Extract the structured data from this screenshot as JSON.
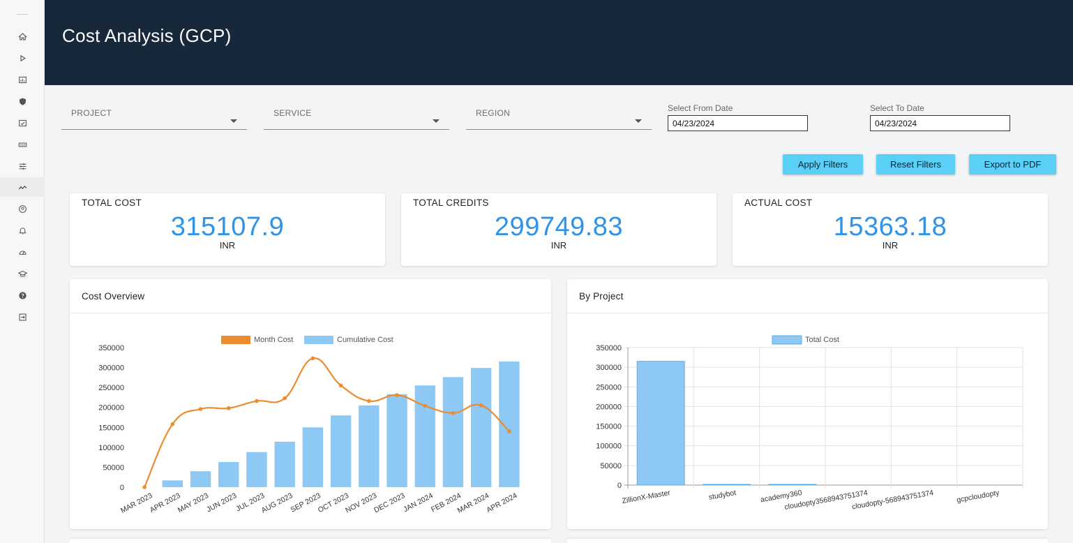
{
  "page": {
    "title": "Cost Analysis (GCP)"
  },
  "sidebar": {
    "items": [
      {
        "icon": "home-icon"
      },
      {
        "icon": "play-icon"
      },
      {
        "icon": "chart-icon"
      },
      {
        "icon": "shield-icon"
      },
      {
        "icon": "checklist-icon"
      },
      {
        "icon": "storage-icon"
      },
      {
        "icon": "sliders-icon"
      },
      {
        "icon": "trend-icon",
        "active": true
      },
      {
        "icon": "user-circle-icon"
      },
      {
        "icon": "bell-icon"
      },
      {
        "icon": "gauge-icon"
      },
      {
        "icon": "graduation-cap-icon"
      },
      {
        "icon": "help-icon"
      },
      {
        "icon": "logout-icon"
      }
    ]
  },
  "filters": {
    "project_label": "PROJECT",
    "service_label": "SERVICE",
    "region_label": "REGION",
    "from_label": "Select From Date",
    "from_value": "04/23/2024",
    "to_label": "Select To Date",
    "to_value": "04/23/2024"
  },
  "actions": {
    "apply": "Apply Filters",
    "reset": "Reset Filters",
    "export": "Export to PDF"
  },
  "kpis": [
    {
      "title": "TOTAL COST",
      "value": "315107.9",
      "unit": "INR"
    },
    {
      "title": "TOTAL CREDITS",
      "value": "299749.83",
      "unit": "INR"
    },
    {
      "title": "ACTUAL COST",
      "value": "15363.18",
      "unit": "INR"
    }
  ],
  "panels": {
    "overview_title": "Cost Overview",
    "project_title": "By Project"
  },
  "colors": {
    "line": "#ec8c2e",
    "bar": "#8ec8f4",
    "bar_border": "#5aaee8",
    "value": "#2f93e8",
    "header": "#17283b",
    "button": "#5bd0f7"
  },
  "chart_data": [
    {
      "type": "bar",
      "categories": [
        "MAR 2023",
        "APR 2023",
        "MAY 2023",
        "JUN 2023",
        "JUL 2023",
        "AUG 2023",
        "SEP 2023",
        "OCT 2023",
        "NOV 2023",
        "DEC 2023",
        "JAN 2024",
        "FEB 2024",
        "MAR 2024",
        "APR 2024"
      ],
      "series": [
        {
          "name": "Month Cost",
          "type": "line",
          "values": [
            0,
            158000,
            196000,
            198000,
            216000,
            223000,
            323000,
            255000,
            216000,
            231000,
            204000,
            186000,
            205000,
            140000
          ]
        },
        {
          "name": "Cumulative Cost",
          "type": "bar",
          "values": [
            0,
            17000,
            40000,
            63000,
            88000,
            114000,
            150000,
            180000,
            205000,
            233000,
            255000,
            276000,
            299000,
            315000
          ]
        }
      ],
      "ylim": [
        0,
        350000
      ],
      "yticks": [
        0,
        50000,
        100000,
        150000,
        200000,
        250000,
        300000,
        350000
      ],
      "legend": "top",
      "grid": false
    },
    {
      "type": "bar",
      "categories": [
        "ZillionX-Master",
        "studybot",
        "academy360",
        "cloudopty3568943751374",
        "cloudopty-568943751374",
        "gcpcloudopty"
      ],
      "series": [
        {
          "name": "Total Cost",
          "values": [
            315000,
            900,
            100,
            0,
            0,
            0
          ]
        }
      ],
      "ylim": [
        0,
        350000
      ],
      "yticks": [
        0,
        50000,
        100000,
        150000,
        200000,
        250000,
        300000,
        350000
      ],
      "legend": "top",
      "grid": true
    }
  ]
}
